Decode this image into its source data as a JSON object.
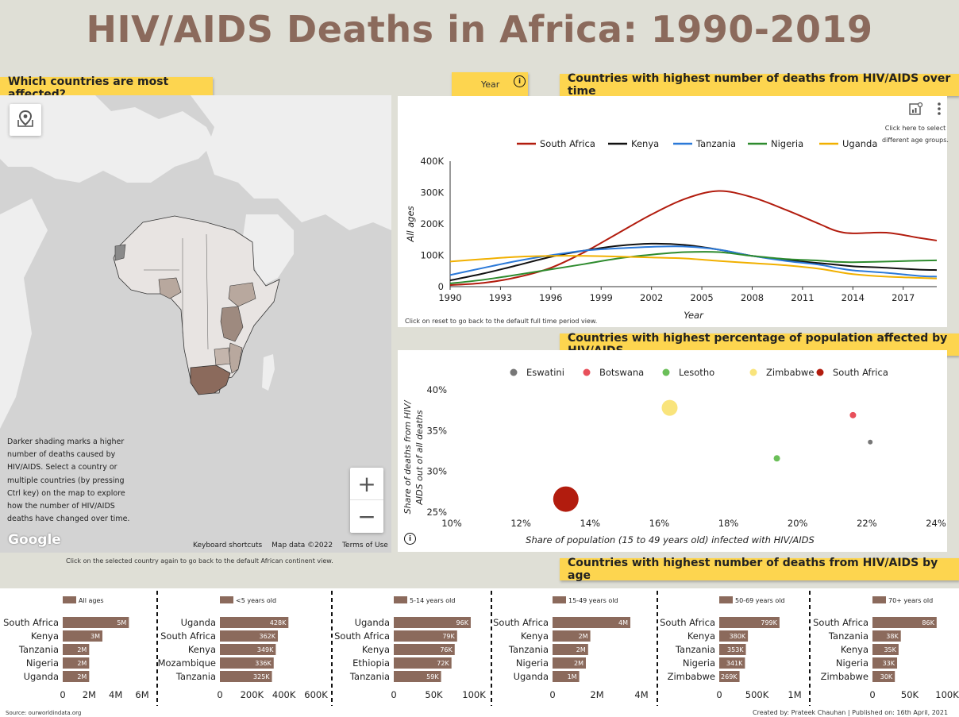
{
  "title": "HIV/AIDS Deaths in Africa: 1990-2019",
  "map_panel": {
    "label": "Which countries are most affected?",
    "description": [
      "Darker shading marks a higher",
      "number of deaths caused by",
      "HIV/AIDS. Select a country or",
      "multiple countries (by pressing",
      "Ctrl key) on the map to explore",
      "how the number of HIV/AIDS",
      "deaths have changed over time."
    ],
    "zoom_in": "+",
    "zoom_out": "−",
    "google": "Google",
    "footer": [
      "Keyboard shortcuts",
      "Map data ©2022",
      "Terms of Use"
    ],
    "note": "Click on the selected country again to go back to the default African continent view."
  },
  "year_control": {
    "label": "Year",
    "info_icon": "i"
  },
  "line_panel": {
    "label": "Countries with highest number of deaths from HIV/AIDS over time",
    "hint": [
      "Click here to select",
      "different age groups."
    ],
    "reset_note": "Click on reset to go back to the default full time period view."
  },
  "scatter_panel": {
    "label": "Countries with highest percentage of population affected by HIV/AIDS"
  },
  "bars_panel": {
    "label": "Countries with highest number of deaths from HIV/AIDS by age",
    "source": "Source: ourworldindata.org",
    "credits": "Created by: Prateek Chauhan | Published on: 16th April, 2021"
  },
  "colors": {
    "accent": "#fdd54f",
    "title": "#8b6a5c",
    "bar": "#8b6a5c"
  },
  "chart_data": [
    {
      "type": "line",
      "xlabel": "Year",
      "ylabel": "All ages",
      "xlim": [
        1990,
        2019
      ],
      "ylim": [
        0,
        400000
      ],
      "xticks": [
        "1990",
        "1993",
        "1996",
        "1999",
        "2002",
        "2005",
        "2008",
        "2011",
        "2014",
        "2017"
      ],
      "yticks": [
        "0",
        "100K",
        "200K",
        "300K",
        "400K"
      ],
      "legend": "top",
      "x": [
        1990,
        1992,
        1994,
        1996,
        1998,
        2000,
        2002,
        2004,
        2006,
        2008,
        2010,
        2012,
        2013,
        2014,
        2016,
        2018,
        2019
      ],
      "series": [
        {
          "name": "South Africa",
          "color": "#b21c0e",
          "values": [
            5000,
            12000,
            30000,
            60000,
            110000,
            170000,
            230000,
            280000,
            305000,
            285000,
            245000,
            200000,
            178000,
            170000,
            172000,
            155000,
            147000
          ]
        },
        {
          "name": "Kenya",
          "color": "#111111",
          "values": [
            20000,
            42000,
            68000,
            95000,
            115000,
            130000,
            137000,
            133000,
            118000,
            98000,
            85000,
            75000,
            70000,
            65000,
            60000,
            54000,
            53000
          ]
        },
        {
          "name": "Tanzania",
          "color": "#2b79d8",
          "values": [
            37000,
            60000,
            82000,
            100000,
            115000,
            122000,
            127000,
            128000,
            118000,
            98000,
            82000,
            70000,
            60000,
            52000,
            44000,
            34000,
            32000
          ]
        },
        {
          "name": "Nigeria",
          "color": "#2e8b2e",
          "values": [
            10000,
            22000,
            38000,
            55000,
            72000,
            90000,
            102000,
            110000,
            110000,
            98000,
            88000,
            83000,
            79000,
            78000,
            80000,
            83000,
            84000
          ]
        },
        {
          "name": "Uganda",
          "color": "#f1b000",
          "values": [
            80000,
            88000,
            95000,
            98000,
            98000,
            96000,
            93000,
            90000,
            82000,
            75000,
            68000,
            57000,
            48000,
            40000,
            32000,
            28000,
            26000
          ]
        }
      ]
    },
    {
      "type": "scatter",
      "xlabel": "Share of population (15 to 49 years old) infected with HIV/AIDS",
      "ylabel": "Share of deaths from HIV/AIDS out of all deaths",
      "xlim": [
        10,
        24
      ],
      "ylim": [
        25,
        40
      ],
      "xticks": [
        "10%",
        "12%",
        "14%",
        "16%",
        "18%",
        "20%",
        "22%",
        "24%"
      ],
      "yticks": [
        "25%",
        "30%",
        "35%",
        "40%"
      ],
      "legend": "top",
      "series": [
        {
          "name": "Eswatini",
          "color": "#777777",
          "x": 22.1,
          "y": 33.6,
          "size": 3
        },
        {
          "name": "Botswana",
          "color": "#e8505b",
          "x": 21.6,
          "y": 36.9,
          "size": 4
        },
        {
          "name": "Lesotho",
          "color": "#6bbf59",
          "x": 19.4,
          "y": 31.6,
          "size": 4
        },
        {
          "name": "Zimbabwe",
          "color": "#f9e47c",
          "x": 16.3,
          "y": 37.8,
          "size": 10
        },
        {
          "name": "South Africa",
          "color": "#b21c0e",
          "x": 13.3,
          "y": 26.6,
          "size": 16
        }
      ]
    },
    {
      "type": "bar",
      "panels": [
        {
          "legend": "All ages",
          "axis_ticks": [
            "0",
            "2M",
            "4M",
            "6M"
          ],
          "xmax": 6000000,
          "categories": [
            "South Africa",
            "Kenya",
            "Tanzania",
            "Nigeria",
            "Uganda"
          ],
          "values": [
            5000000,
            3000000,
            2000000,
            2000000,
            2000000
          ],
          "labels": [
            "5M",
            "3M",
            "2M",
            "2M",
            "2M"
          ]
        },
        {
          "legend": "<5 years old",
          "axis_ticks": [
            "0",
            "200K",
            "400K",
            "600K"
          ],
          "xmax": 600000,
          "categories": [
            "Uganda",
            "South Africa",
            "Kenya",
            "Mozambique",
            "Tanzania"
          ],
          "values": [
            428000,
            362000,
            349000,
            336000,
            325000
          ],
          "labels": [
            "428K",
            "362K",
            "349K",
            "336K",
            "325K"
          ]
        },
        {
          "legend": "5-14 years old",
          "axis_ticks": [
            "0",
            "50K",
            "100K"
          ],
          "xmax": 100000,
          "categories": [
            "Uganda",
            "South Africa",
            "Kenya",
            "Ethiopia",
            "Tanzania"
          ],
          "values": [
            96000,
            79000,
            76000,
            72000,
            59000
          ],
          "labels": [
            "96K",
            "79K",
            "76K",
            "72K",
            "59K"
          ]
        },
        {
          "legend": "15-49 years old",
          "axis_ticks": [
            "0",
            "2M",
            "4M"
          ],
          "xmax": 4000000,
          "categories": [
            "South Africa",
            "Kenya",
            "Tanzania",
            "Nigeria",
            "Uganda"
          ],
          "values": [
            3500000,
            1700000,
            1600000,
            1500000,
            1200000
          ],
          "labels": [
            "4M",
            "2M",
            "2M",
            "2M",
            "1M"
          ]
        },
        {
          "legend": "50-69 years old",
          "axis_ticks": [
            "0",
            "500K",
            "1M"
          ],
          "xmax": 1000000,
          "categories": [
            "South Africa",
            "Kenya",
            "Tanzania",
            "Nigeria",
            "Zimbabwe"
          ],
          "values": [
            799000,
            380000,
            353000,
            341000,
            269000
          ],
          "labels": [
            "799K",
            "380K",
            "353K",
            "341K",
            "269K"
          ]
        },
        {
          "legend": "70+ years old",
          "axis_ticks": [
            "0",
            "50K",
            "100K"
          ],
          "xmax": 100000,
          "categories": [
            "South Africa",
            "Tanzania",
            "Kenya",
            "Nigeria",
            "Zimbabwe"
          ],
          "values": [
            86000,
            38000,
            35000,
            33000,
            30000
          ],
          "labels": [
            "86K",
            "38K",
            "35K",
            "33K",
            "30K"
          ]
        }
      ]
    }
  ]
}
